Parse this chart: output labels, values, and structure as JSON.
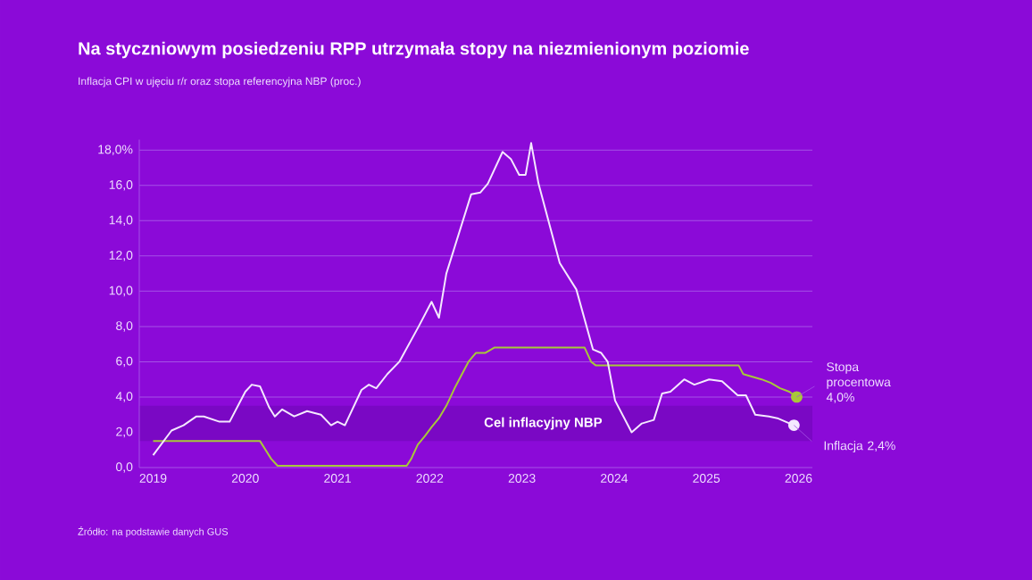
{
  "chart_data": {
    "type": "line",
    "title": "Na styczniowym posiedzeniu RPP utrzymała stopy na niezmienionym poziomie",
    "subtitle": "Inflacja CPI w ujęciu r/r oraz stopa referencyjna NBP (proc.)",
    "series": [
      {
        "color": "#a8c83a",
        "x": [
          2019.0,
          2020.16,
          2020.22,
          2020.28,
          2020.35,
          2021.75,
          2021.8,
          2021.87,
          2021.95,
          2022.02,
          2022.1,
          2022.18,
          2022.27,
          2022.35,
          2022.42,
          2022.5,
          2022.6,
          2022.7,
          2023.68,
          2023.75,
          2023.8,
          2025.35,
          2025.4,
          2025.6,
          2025.7,
          2025.8,
          2025.9,
          2025.98
        ],
        "values": [
          1.5,
          1.5,
          1.0,
          0.5,
          0.1,
          0.1,
          0.5,
          1.3,
          1.8,
          2.3,
          2.8,
          3.5,
          4.5,
          5.3,
          6.0,
          6.5,
          6.5,
          6.8,
          6.8,
          6.0,
          5.8,
          5.8,
          5.3,
          5.0,
          4.8,
          4.5,
          4.3,
          4.0
        ]
      },
      {
        "color": "#f4e8ff",
        "x": [
          2019.0,
          2019.2,
          2019.33,
          2019.47,
          2019.55,
          2019.72,
          2019.83,
          2020.0,
          2020.07,
          2020.16,
          2020.26,
          2020.32,
          2020.4,
          2020.53,
          2020.67,
          2020.82,
          2020.93,
          2021.0,
          2021.08,
          2021.26,
          2021.34,
          2021.42,
          2021.54,
          2021.67,
          2021.88,
          2022.02,
          2022.1,
          2022.18,
          2022.45,
          2022.55,
          2022.63,
          2022.79,
          2022.88,
          2022.97,
          2023.04,
          2023.1,
          2023.18,
          2023.41,
          2023.59,
          2023.77,
          2023.86,
          2023.93,
          2024.01,
          2024.19,
          2024.3,
          2024.43,
          2024.52,
          2024.61,
          2024.76,
          2024.87,
          2025.03,
          2025.17,
          2025.34,
          2025.43,
          2025.53,
          2025.68,
          2025.77,
          2025.95
        ],
        "values": [
          0.7,
          2.1,
          2.4,
          2.9,
          2.9,
          2.6,
          2.6,
          4.3,
          4.7,
          4.6,
          3.4,
          2.9,
          3.3,
          2.9,
          3.2,
          3.0,
          2.4,
          2.6,
          2.4,
          4.4,
          4.7,
          4.5,
          5.3,
          6.0,
          8.0,
          9.4,
          8.5,
          11.0,
          15.5,
          15.6,
          16.1,
          17.9,
          17.5,
          16.6,
          16.6,
          18.4,
          16.1,
          11.6,
          10.1,
          6.7,
          6.5,
          6.0,
          3.8,
          2.0,
          2.5,
          2.7,
          4.2,
          4.3,
          5.0,
          4.7,
          5.0,
          4.9,
          4.1,
          4.1,
          3.0,
          2.9,
          2.8,
          2.4
        ]
      }
    ],
    "xlim": [
      2018.85,
      2026.15
    ],
    "xticks": [
      2019,
      2020,
      2021,
      2022,
      2023,
      2024,
      2025,
      2026
    ],
    "ylim": [
      0,
      18.6
    ],
    "yticks": [
      {
        "value": 0,
        "label": "0,0"
      },
      {
        "value": 2,
        "label": "2,0"
      },
      {
        "value": 4,
        "label": "4,0"
      },
      {
        "value": 6,
        "label": "6,0"
      },
      {
        "value": 8,
        "label": "8,0"
      },
      {
        "value": 10,
        "label": "10,0"
      },
      {
        "value": 12,
        "label": "12,0"
      },
      {
        "value": 14,
        "label": "14,0"
      },
      {
        "value": 16,
        "label": "16,0"
      },
      {
        "value": 18,
        "label": "18,0%"
      }
    ],
    "grid": "y",
    "bands": [
      {
        "axis": "y",
        "from": 1.5,
        "to": 3.5,
        "label": "Cel inflacyjny NBP",
        "color": "#7a08c4"
      }
    ],
    "annotations": [
      {
        "text": "Stopa procentowa 4,0%",
        "x": 2025.98,
        "y": 4.0
      },
      {
        "text": "Inflacja 2,4%",
        "x": 2025.95,
        "y": 2.4
      },
      "Źródło: na podstawie danych GUS"
    ]
  }
}
